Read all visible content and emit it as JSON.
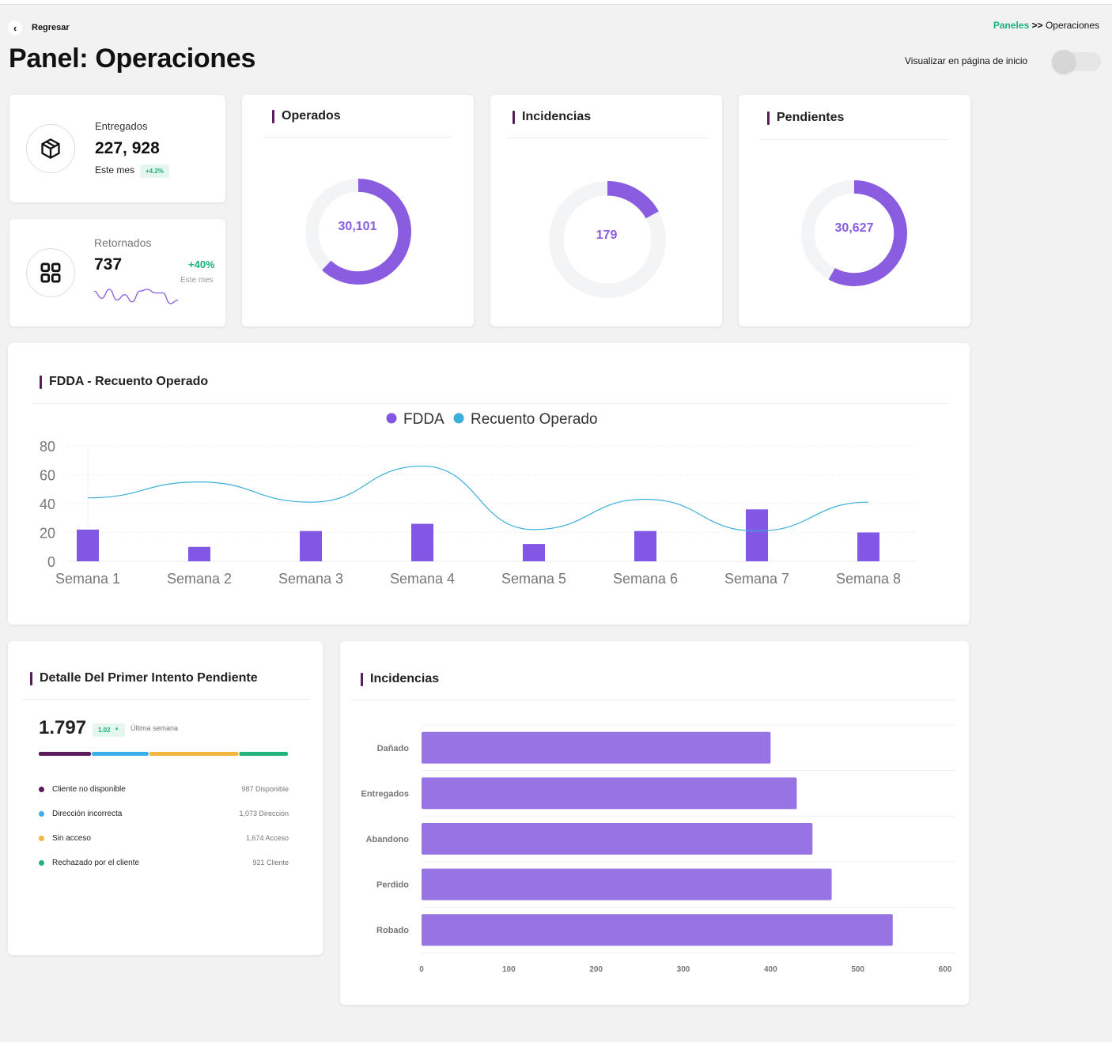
{
  "nav": {
    "back_label": "Regresar",
    "breadcrumb_root": "Paneles",
    "breadcrumb_sep": ">>",
    "breadcrumb_current": "Operaciones"
  },
  "page": {
    "title": "Panel: Operaciones",
    "home_toggle_label": "Visualizar en página de inicio",
    "home_toggle_on": false
  },
  "entregados": {
    "label": "Entregados",
    "value": "227, 928",
    "period": "Este mes",
    "change": "+4.2%",
    "icon": "package-icon"
  },
  "retornados": {
    "label": "Retornados",
    "value": "737",
    "change": "+40%",
    "period": "Este mes",
    "icon": "grid-icon",
    "sparkline": [
      12,
      8,
      13,
      7,
      10,
      6,
      12,
      13,
      11,
      11,
      5,
      7
    ]
  },
  "donuts": [
    {
      "title": "Operados",
      "value": "30,101",
      "fraction": 0.62
    },
    {
      "title": "Incidencias",
      "value": "179",
      "fraction": 0.17
    },
    {
      "title": "Pendientes",
      "value": "30,627",
      "fraction": 0.58
    }
  ],
  "colors": {
    "accent": "#8a5de0",
    "bar": "#8257e5",
    "line": "#3ab0d8",
    "title_bar": "#5a1a5c",
    "green": "#1bb07a",
    "track": "#f3f4f6"
  },
  "fdda_chart": {
    "title": "FDDA - Recuento Operado",
    "chart_data": {
      "type": "bar",
      "categories": [
        "Semana 1",
        "Semana 2",
        "Semana 3",
        "Semana 4",
        "Semana 5",
        "Semana 6",
        "Semana 7",
        "Semana 8"
      ],
      "series": [
        {
          "name": "FDDA",
          "type": "bar",
          "values": [
            22,
            10,
            21,
            26,
            12,
            21,
            36,
            20
          ]
        },
        {
          "name": "Recuento Operado",
          "type": "line",
          "values": [
            44,
            55,
            41,
            66,
            22,
            43,
            21,
            41
          ]
        }
      ],
      "ylim": [
        0,
        80
      ],
      "yticks": [
        "0",
        "20",
        "40",
        "60",
        "80"
      ],
      "legend": "top",
      "grid": true
    }
  },
  "detalle": {
    "title": "Detalle Del Primer Intento Pendiente",
    "value": "1.797",
    "change": "1.02",
    "change_arrow": "▲",
    "period": "Última semana",
    "items": [
      {
        "label": "Cliente no disponible",
        "value": "987 Disponible",
        "color": "#5a1a5c",
        "amount": 987
      },
      {
        "label": "Dirección incorrecta",
        "value": "1,073 Dirección",
        "color": "#3ab0e8",
        "amount": 1073
      },
      {
        "label": "Sin acceso",
        "value": "1,674 Acceso",
        "color": "#f2b740",
        "amount": 1674
      },
      {
        "label": "Rechazado por el cliente",
        "value": "921 Cliente",
        "color": "#23b57c",
        "amount": 921
      }
    ]
  },
  "incidencias_chart": {
    "title": "Incidencias",
    "chart_data": {
      "type": "bar",
      "orientation": "horizontal",
      "categories": [
        "Dañado",
        "Entregados",
        "Abandono",
        "Perdido",
        "Robado"
      ],
      "values": [
        400,
        430,
        448,
        470,
        540
      ],
      "xlim": [
        0,
        600
      ],
      "xticks": [
        "0",
        "100",
        "200",
        "300",
        "400",
        "500",
        "600"
      ],
      "grid": true
    }
  }
}
